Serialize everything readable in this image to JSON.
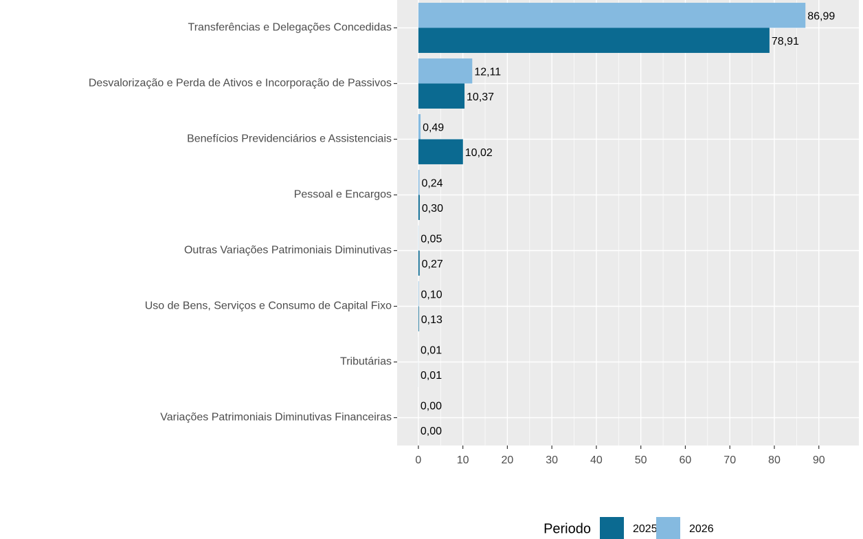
{
  "chart_data": {
    "type": "barh",
    "categories": [
      "Transferências e Delegações Concedidas",
      "Desvalorização e Perda de Ativos e Incorporação de Passivos",
      "Benefícios Previdenciários e Assistenciais",
      "Pessoal e Encargos",
      "Outras Variações Patrimoniais Diminutivas",
      "Uso de Bens, Serviços e Consumo de Capital Fixo",
      "Tributárias",
      "Variações Patrimoniais Diminutivas Financeiras"
    ],
    "series": [
      {
        "name": "2025",
        "color": "#0b6a91",
        "values": [
          78.91,
          10.37,
          10.02,
          0.3,
          0.27,
          0.13,
          0.01,
          0.0
        ],
        "value_labels": [
          "78,91",
          "10,37",
          "10,02",
          "0,30",
          "0,27",
          "0,13",
          "0,01",
          "0,00"
        ]
      },
      {
        "name": "2026",
        "color": "#85bae0",
        "values": [
          86.99,
          12.11,
          0.49,
          0.24,
          0.05,
          0.1,
          0.01,
          0.0
        ],
        "value_labels": [
          "86,99",
          "12,11",
          "0,49",
          "0,24",
          "0,05",
          "0,10",
          "0,01",
          "0,00"
        ]
      }
    ],
    "xlim": [
      -4.77,
      99
    ],
    "xticks": [
      0,
      10,
      20,
      30,
      40,
      50,
      60,
      70,
      80,
      90
    ],
    "legend_title": "Periodo",
    "legend_position": "bottom",
    "grid": true
  }
}
